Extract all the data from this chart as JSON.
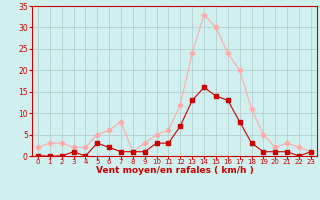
{
  "x": [
    0,
    1,
    2,
    3,
    4,
    5,
    6,
    7,
    8,
    9,
    10,
    11,
    12,
    13,
    14,
    15,
    16,
    17,
    18,
    19,
    20,
    21,
    22,
    23
  ],
  "y_moyen": [
    0,
    0,
    0,
    1,
    0,
    3,
    2,
    1,
    1,
    1,
    3,
    3,
    7,
    13,
    16,
    14,
    13,
    8,
    3,
    1,
    1,
    1,
    0,
    1
  ],
  "y_rafales": [
    2,
    3,
    3,
    2,
    2,
    5,
    6,
    8,
    1,
    3,
    5,
    6,
    12,
    24,
    33,
    30,
    24,
    20,
    11,
    5,
    2,
    3,
    2,
    1
  ],
  "xlabel": "Vent moyen/en rafales ( km/h )",
  "ylim": [
    0,
    35
  ],
  "yticks": [
    0,
    5,
    10,
    15,
    20,
    25,
    30,
    35
  ],
  "xticks": [
    0,
    1,
    2,
    3,
    4,
    5,
    6,
    7,
    8,
    9,
    10,
    11,
    12,
    13,
    14,
    15,
    16,
    17,
    18,
    19,
    20,
    21,
    22,
    23
  ],
  "color_moyen": "#cc0000",
  "color_rafales": "#ffaaaa",
  "bg_color": "#cff0ee",
  "grid_color": "#b0c8c8",
  "label_color": "#cc0000",
  "tick_color": "#cc0000"
}
